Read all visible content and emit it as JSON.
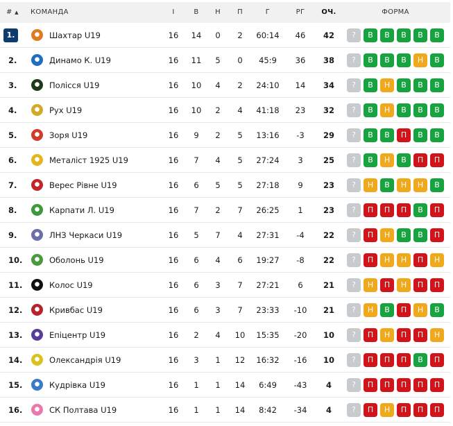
{
  "header": {
    "pos": "#",
    "sort_icon": "▲",
    "team": "КОМАНДА",
    "played": "І",
    "won": "В",
    "draw": "Н",
    "lost": "П",
    "goals": "Г",
    "diff": "РГ",
    "points": "ОЧ.",
    "form": "ФОРМА"
  },
  "colors": {
    "В": "#17a33f",
    "Н": "#f0a91c",
    "П": "#d0141a",
    "?": "#c8cbcd",
    "pos_top": "#0d3b6e"
  },
  "rows": [
    {
      "pos": "1.",
      "team": "Шахтар U19",
      "p": "16",
      "w": "14",
      "d": "0",
      "l": "2",
      "g": "60:14",
      "gd": "46",
      "pts": "42",
      "form": [
        "?",
        "В",
        "В",
        "В",
        "В",
        "В"
      ],
      "logo": "#e07a1f"
    },
    {
      "pos": "2.",
      "team": "Динамо К. U19",
      "p": "16",
      "w": "11",
      "d": "5",
      "l": "0",
      "g": "45:9",
      "gd": "36",
      "pts": "38",
      "form": [
        "?",
        "В",
        "В",
        "В",
        "Н",
        "В"
      ],
      "logo": "#1f6fc0"
    },
    {
      "pos": "3.",
      "team": "Полісся U19",
      "p": "16",
      "w": "10",
      "d": "4",
      "l": "2",
      "g": "24:10",
      "gd": "14",
      "pts": "34",
      "form": [
        "?",
        "В",
        "Н",
        "В",
        "В",
        "В"
      ],
      "logo": "#1d3a1d"
    },
    {
      "pos": "4.",
      "team": "Рух U19",
      "p": "16",
      "w": "10",
      "d": "2",
      "l": "4",
      "g": "41:18",
      "gd": "23",
      "pts": "32",
      "form": [
        "?",
        "В",
        "Н",
        "В",
        "В",
        "В"
      ],
      "logo": "#d4a92a"
    },
    {
      "pos": "5.",
      "team": "Зоря U19",
      "p": "16",
      "w": "9",
      "d": "2",
      "l": "5",
      "g": "13:16",
      "gd": "-3",
      "pts": "29",
      "form": [
        "?",
        "В",
        "В",
        "П",
        "В",
        "В"
      ],
      "logo": "#d23a2a"
    },
    {
      "pos": "6.",
      "team": "Металіст 1925 U19",
      "p": "16",
      "w": "7",
      "d": "4",
      "l": "5",
      "g": "27:24",
      "gd": "3",
      "pts": "25",
      "form": [
        "?",
        "В",
        "Н",
        "В",
        "П",
        "П"
      ],
      "logo": "#e3b51e"
    },
    {
      "pos": "7.",
      "team": "Верес Рівне U19",
      "p": "16",
      "w": "6",
      "d": "5",
      "l": "5",
      "g": "27:18",
      "gd": "9",
      "pts": "23",
      "form": [
        "?",
        "Н",
        "В",
        "Н",
        "Н",
        "В"
      ],
      "logo": "#c0262a"
    },
    {
      "pos": "8.",
      "team": "Карпати Л. U19",
      "p": "16",
      "w": "7",
      "d": "2",
      "l": "7",
      "g": "26:25",
      "gd": "1",
      "pts": "23",
      "form": [
        "?",
        "П",
        "П",
        "П",
        "В",
        "П"
      ],
      "logo": "#3c9a3a"
    },
    {
      "pos": "9.",
      "team": "ЛНЗ Черкаси U19",
      "p": "16",
      "w": "5",
      "d": "7",
      "l": "4",
      "g": "27:31",
      "gd": "-4",
      "pts": "22",
      "form": [
        "?",
        "П",
        "Н",
        "В",
        "В",
        "П"
      ],
      "logo": "#6a6fa8"
    },
    {
      "pos": "10.",
      "team": "Оболонь U19",
      "p": "16",
      "w": "6",
      "d": "4",
      "l": "6",
      "g": "19:27",
      "gd": "-8",
      "pts": "22",
      "form": [
        "?",
        "П",
        "Н",
        "Н",
        "П",
        "Н"
      ],
      "logo": "#4a9a3c"
    },
    {
      "pos": "11.",
      "team": "Колос U19",
      "p": "16",
      "w": "6",
      "d": "3",
      "l": "7",
      "g": "27:21",
      "gd": "6",
      "pts": "21",
      "form": [
        "?",
        "Н",
        "П",
        "Н",
        "П",
        "П"
      ],
      "logo": "#111111"
    },
    {
      "pos": "12.",
      "team": "Кривбас U19",
      "p": "16",
      "w": "6",
      "d": "3",
      "l": "7",
      "g": "23:33",
      "gd": "-10",
      "pts": "21",
      "form": [
        "?",
        "Н",
        "В",
        "П",
        "Н",
        "В"
      ],
      "logo": "#b8232a"
    },
    {
      "pos": "13.",
      "team": "Епіцентр U19",
      "p": "16",
      "w": "2",
      "d": "4",
      "l": "10",
      "g": "15:35",
      "gd": "-20",
      "pts": "10",
      "form": [
        "?",
        "П",
        "Н",
        "П",
        "П",
        "Н"
      ],
      "logo": "#5a3d9a"
    },
    {
      "pos": "14.",
      "team": "Олександрія U19",
      "p": "16",
      "w": "3",
      "d": "1",
      "l": "12",
      "g": "16:32",
      "gd": "-16",
      "pts": "10",
      "form": [
        "?",
        "П",
        "П",
        "П",
        "В",
        "П"
      ],
      "logo": "#d9c21e"
    },
    {
      "pos": "15.",
      "team": "Кудрівка U19",
      "p": "16",
      "w": "1",
      "d": "1",
      "l": "14",
      "g": "6:49",
      "gd": "-43",
      "pts": "4",
      "form": [
        "?",
        "П",
        "П",
        "П",
        "П",
        "П"
      ],
      "logo": "#3a7ac8"
    },
    {
      "pos": "16.",
      "team": "СК Полтава U19",
      "p": "16",
      "w": "1",
      "d": "1",
      "l": "14",
      "g": "8:42",
      "gd": "-34",
      "pts": "4",
      "form": [
        "?",
        "П",
        "Н",
        "П",
        "П",
        "П"
      ],
      "logo": "#e87ab0"
    }
  ]
}
